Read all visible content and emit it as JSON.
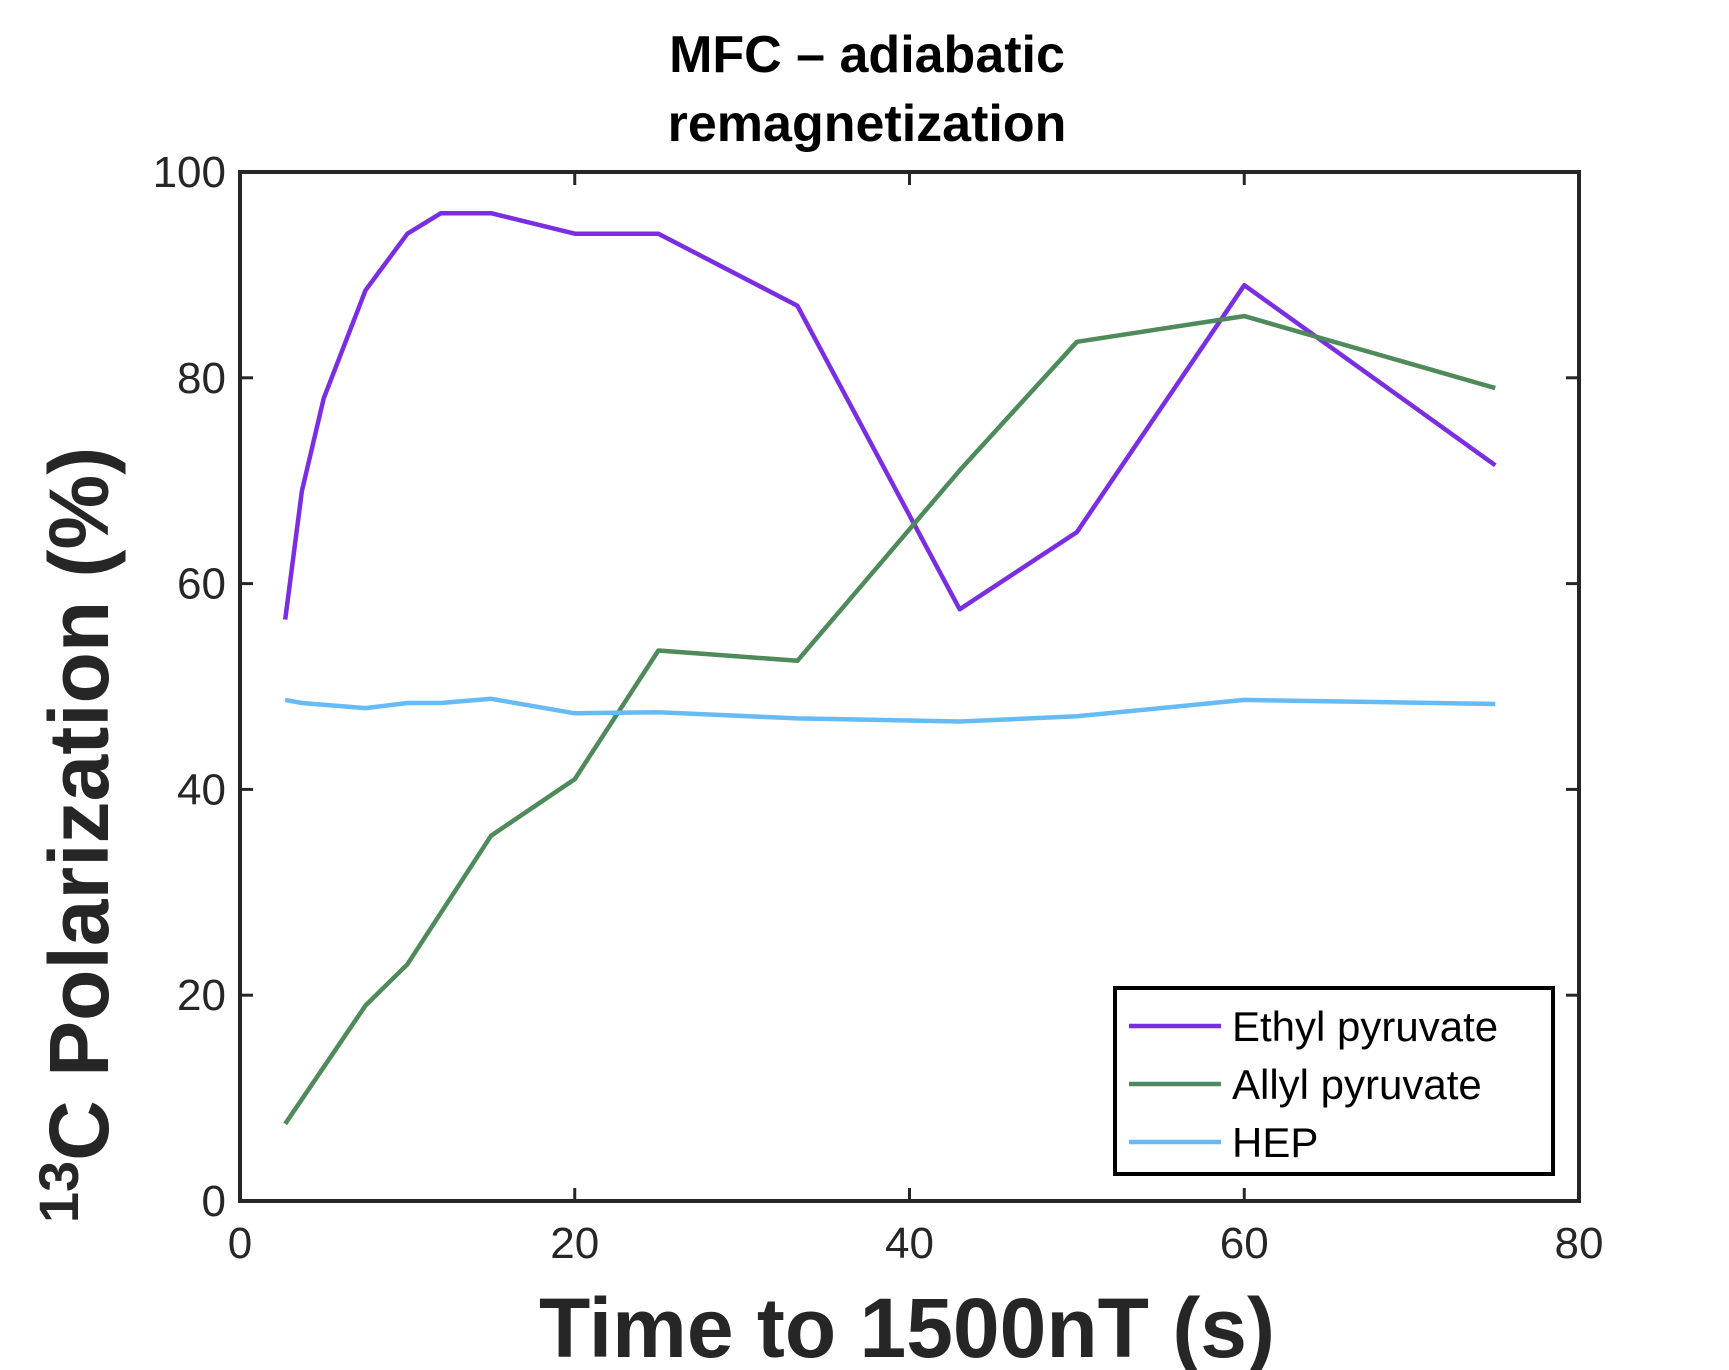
{
  "chart_data": {
    "type": "line",
    "title_line1": "MFC – adiabatic",
    "title_line2": "remagnetization",
    "xlabel": "Time to 1500nT (s)",
    "ylabel_superscript": "13",
    "ylabel_main": "C Polarization (%)",
    "xlim": [
      0,
      80
    ],
    "ylim": [
      0,
      100
    ],
    "xticks": [
      0,
      20,
      40,
      60,
      80
    ],
    "yticks": [
      0,
      20,
      40,
      60,
      80,
      100
    ],
    "legend_position": "bottom-right",
    "grid": false,
    "series": [
      {
        "name": "Ethyl pyruvate",
        "color": "#7b2ee0",
        "x": [
          2.7,
          3.7,
          5,
          7.5,
          10,
          12,
          15,
          20,
          25,
          33.3,
          43,
          50,
          60,
          75
        ],
        "y": [
          56.5,
          69,
          78,
          88.5,
          94,
          96,
          96,
          94,
          94,
          87,
          57.5,
          65,
          89,
          71.5
        ]
      },
      {
        "name": "Allyl pyruvate",
        "color": "#4e8a5a",
        "x": [
          2.7,
          5,
          7.5,
          10,
          15,
          20,
          25,
          33.3,
          43,
          50,
          60,
          75
        ],
        "y": [
          7.5,
          13,
          19,
          23,
          35.5,
          41,
          53.5,
          52.5,
          71,
          83.5,
          86,
          79
        ]
      },
      {
        "name": "HEP",
        "color": "#66bbf5",
        "x": [
          2.7,
          3.7,
          7.5,
          10,
          12,
          15,
          20,
          25,
          33.3,
          43,
          50,
          60,
          75
        ],
        "y": [
          48.7,
          48.4,
          47.9,
          48.4,
          48.4,
          48.8,
          47.4,
          47.5,
          46.9,
          46.6,
          47.1,
          48.7,
          48.3
        ]
      }
    ]
  }
}
